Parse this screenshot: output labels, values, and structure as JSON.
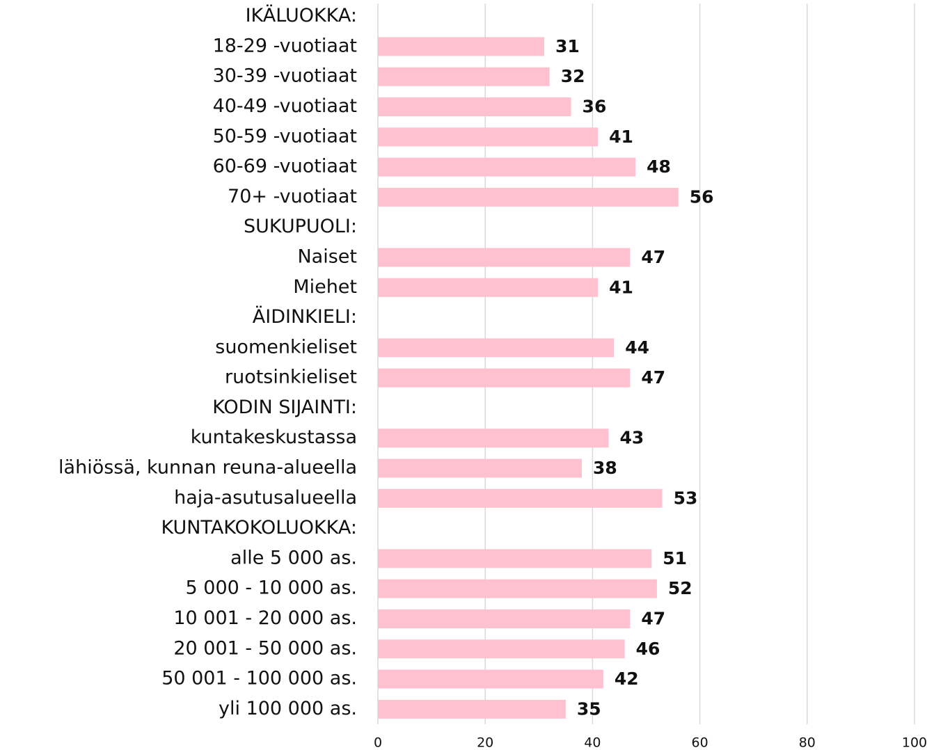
{
  "chart_data": {
    "type": "bar",
    "orientation": "horizontal",
    "categories": [
      "IKÄLUOKKA:",
      "18-29 -vuotiaat",
      "30-39 -vuotiaat",
      "40-49 -vuotiaat",
      "50-59 -vuotiaat",
      "60-69 -vuotiaat",
      "70+ -vuotiaat",
      "SUKUPUOLI:",
      "Naiset",
      "Miehet",
      "ÄIDINKIELI:",
      "suomenkieliset",
      "ruotsinkieliset",
      "KODIN SIJAINTI:",
      "kuntakeskustassa",
      "lähiössä, kunnan reuna-alueella",
      "haja-asutusalueella",
      "KUNTAKOKOLUOKKA:",
      "alle 5 000 as.",
      "5 000 - 10 000 as.",
      "10 001 - 20 000 as.",
      "20 001 - 50 000 as.",
      "50 001 - 100 000 as.",
      "yli 100 000 as."
    ],
    "values": [
      null,
      31,
      32,
      36,
      41,
      48,
      56,
      null,
      47,
      41,
      null,
      44,
      47,
      null,
      43,
      38,
      53,
      null,
      51,
      52,
      47,
      46,
      42,
      35
    ],
    "color": "#ffc0cf",
    "xlim": [
      0,
      100
    ],
    "xticks": [
      0,
      20,
      40,
      60,
      80,
      100
    ],
    "grid": true
  }
}
